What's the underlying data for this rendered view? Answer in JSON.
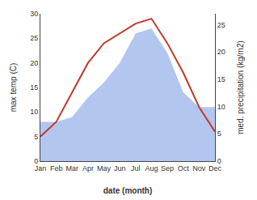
{
  "chart_data": {
    "type": "line",
    "categories": [
      "Jan",
      "Feb",
      "Mar",
      "Apr",
      "May",
      "Jun",
      "Jul",
      "Aug",
      "Sep",
      "Oct",
      "Nov",
      "Dec"
    ],
    "series": [
      {
        "type": "area",
        "color": "#b3c6f0",
        "values": [
          8,
          8,
          9,
          13,
          16,
          20,
          26,
          27,
          22,
          14,
          11,
          11
        ]
      },
      {
        "type": "line",
        "color": "#c0392b",
        "values": [
          5,
          8,
          14,
          20,
          24,
          26,
          28,
          29,
          24,
          18,
          11,
          6
        ]
      }
    ],
    "xlabel": "date (month)",
    "ylabel": "max temp (C)",
    "y2label": "med. precipitation (kg/m2)",
    "ylim": [
      0,
      30
    ],
    "yticks": [
      0,
      5,
      10,
      15,
      20,
      25,
      30
    ],
    "y2lim": [
      0,
      27
    ],
    "y2ticks": [
      0,
      5,
      10,
      15,
      20,
      25
    ],
    "grid": false
  }
}
